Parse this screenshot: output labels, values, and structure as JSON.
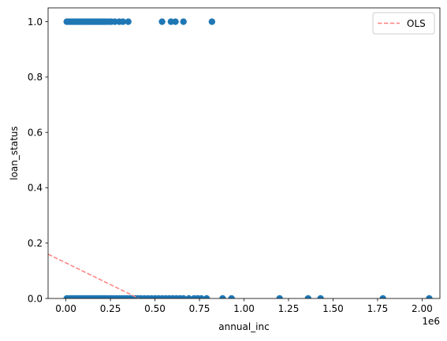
{
  "chart_data": {
    "type": "scatter",
    "title": "",
    "xlabel": "annual_inc",
    "ylabel": "loan_status",
    "x_offset_label": "1e6",
    "x_scale_factor": 1000000,
    "xlim": [
      -100000,
      2100000
    ],
    "ylim": [
      0.0,
      1.05
    ],
    "xticks": [
      0.0,
      0.25,
      0.5,
      0.75,
      1.0,
      1.25,
      1.5,
      1.75,
      2.0
    ],
    "xtick_labels": [
      "0.00",
      "0.25",
      "0.50",
      "0.75",
      "1.00",
      "1.25",
      "1.50",
      "1.75",
      "2.00"
    ],
    "yticks": [
      0.0,
      0.2,
      0.4,
      0.6,
      0.8,
      1.0
    ],
    "ytick_labels": [
      "0.0",
      "0.2",
      "0.4",
      "0.6",
      "0.8",
      "1.0"
    ],
    "grid": false,
    "legend": {
      "placement": "upper-right",
      "entries": [
        "OLS"
      ]
    },
    "series": [
      {
        "kind": "scatter",
        "color": "#1f77b4",
        "points": [
          [
            5000,
            1
          ],
          [
            15000,
            1
          ],
          [
            25000,
            1
          ],
          [
            35000,
            1
          ],
          [
            45000,
            1
          ],
          [
            55000,
            1
          ],
          [
            65000,
            1
          ],
          [
            75000,
            1
          ],
          [
            85000,
            1
          ],
          [
            95000,
            1
          ],
          [
            105000,
            1
          ],
          [
            115000,
            1
          ],
          [
            125000,
            1
          ],
          [
            135000,
            1
          ],
          [
            145000,
            1
          ],
          [
            155000,
            1
          ],
          [
            165000,
            1
          ],
          [
            175000,
            1
          ],
          [
            185000,
            1
          ],
          [
            195000,
            1
          ],
          [
            205000,
            1
          ],
          [
            215000,
            1
          ],
          [
            225000,
            1
          ],
          [
            240000,
            1
          ],
          [
            255000,
            1
          ],
          [
            275000,
            1
          ],
          [
            300000,
            1
          ],
          [
            320000,
            1
          ],
          [
            350000,
            1
          ],
          [
            540000,
            1
          ],
          [
            590000,
            1
          ],
          [
            615000,
            1
          ],
          [
            660000,
            1
          ],
          [
            820000,
            1
          ],
          [
            5000,
            0
          ],
          [
            15000,
            0
          ],
          [
            25000,
            0
          ],
          [
            35000,
            0
          ],
          [
            45000,
            0
          ],
          [
            55000,
            0
          ],
          [
            65000,
            0
          ],
          [
            75000,
            0
          ],
          [
            85000,
            0
          ],
          [
            95000,
            0
          ],
          [
            105000,
            0
          ],
          [
            115000,
            0
          ],
          [
            125000,
            0
          ],
          [
            135000,
            0
          ],
          [
            145000,
            0
          ],
          [
            155000,
            0
          ],
          [
            165000,
            0
          ],
          [
            175000,
            0
          ],
          [
            185000,
            0
          ],
          [
            195000,
            0
          ],
          [
            205000,
            0
          ],
          [
            215000,
            0
          ],
          [
            225000,
            0
          ],
          [
            240000,
            0
          ],
          [
            255000,
            0
          ],
          [
            270000,
            0
          ],
          [
            285000,
            0
          ],
          [
            300000,
            0
          ],
          [
            315000,
            0
          ],
          [
            330000,
            0
          ],
          [
            345000,
            0
          ],
          [
            360000,
            0
          ],
          [
            375000,
            0
          ],
          [
            390000,
            0
          ],
          [
            405000,
            0
          ],
          [
            420000,
            0
          ],
          [
            440000,
            0
          ],
          [
            460000,
            0
          ],
          [
            480000,
            0
          ],
          [
            500000,
            0
          ],
          [
            520000,
            0
          ],
          [
            540000,
            0
          ],
          [
            560000,
            0
          ],
          [
            580000,
            0
          ],
          [
            600000,
            0
          ],
          [
            620000,
            0
          ],
          [
            640000,
            0
          ],
          [
            660000,
            0
          ],
          [
            690000,
            0
          ],
          [
            720000,
            0
          ],
          [
            740000,
            0
          ],
          [
            760000,
            0
          ],
          [
            790000,
            0
          ],
          [
            880000,
            0
          ],
          [
            930000,
            0
          ],
          [
            1200000,
            0
          ],
          [
            1360000,
            0
          ],
          [
            1430000,
            0
          ],
          [
            1780000,
            0
          ],
          [
            2040000,
            0
          ]
        ]
      },
      {
        "kind": "line",
        "name": "OLS",
        "color": "#ff7f7f",
        "dashed": true,
        "points": [
          [
            -100000,
            0.16
          ],
          [
            410000,
            0.0
          ]
        ]
      }
    ]
  }
}
